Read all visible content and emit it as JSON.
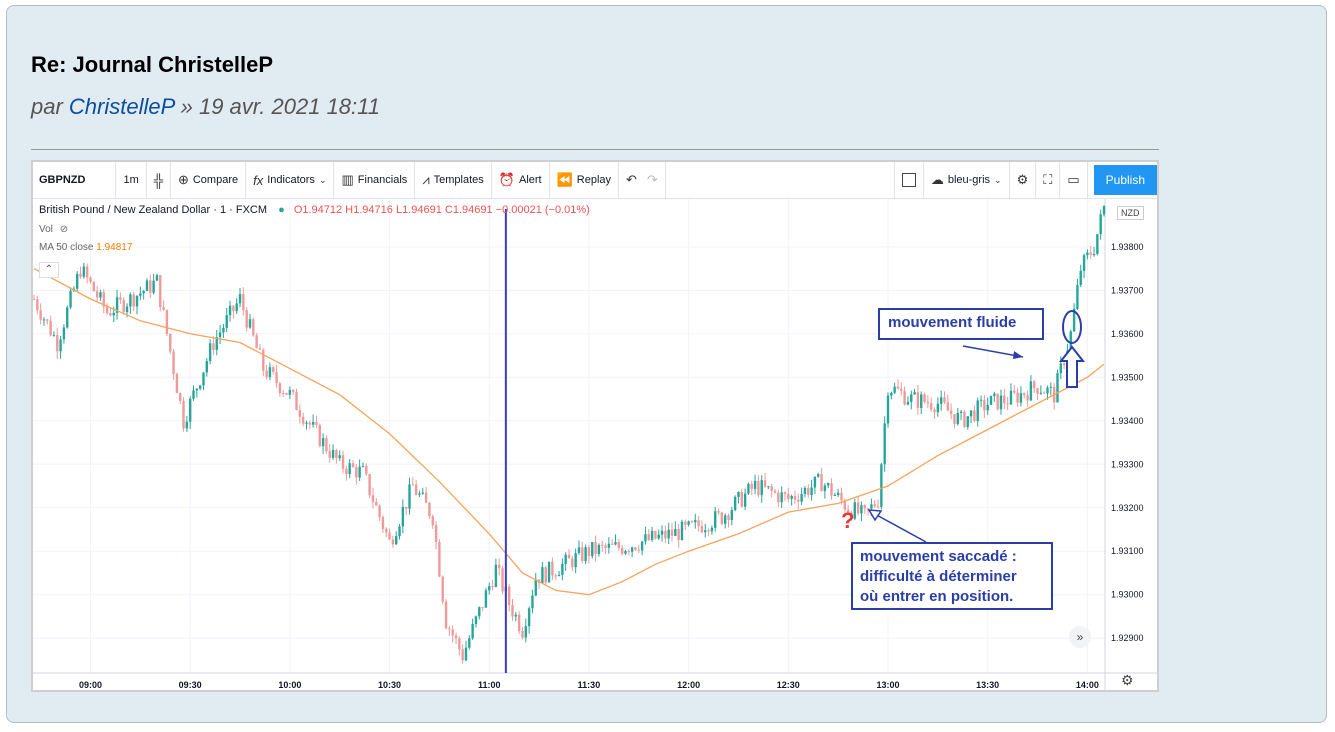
{
  "post": {
    "title": "Re: Journal ChristelleP",
    "by_prefix": "par",
    "author": "ChristelleP",
    "date": "» 19 avr. 2021 18:11"
  },
  "toolbar": {
    "symbol": "GBPNZD",
    "interval": "1m",
    "compare": "Compare",
    "indicators": "Indicators",
    "financials": "Financials",
    "templates": "Templates",
    "alert": "Alert",
    "replay": "Replay",
    "layout_name": "bleu-gris",
    "publish": "Publish"
  },
  "legend": {
    "instrument": "British Pound / New Zealand Dollar · 1 · FXCM",
    "ohlc": "O1.94712 H1.94716 L1.94691 C1.94691 −0.00021 (−0.01%)",
    "vol": "Vol",
    "ma": "MA 50 close",
    "ma_value": "1.94817"
  },
  "colors": {
    "up": "#26a69a",
    "down": "#ef9a9a",
    "ma": "#f7a35c",
    "vline": "#3a3acb",
    "annotation": "#2b3ea8"
  },
  "chart_data": {
    "type": "candlestick",
    "currency": "NZD",
    "y_ticks": [
      "1.92900",
      "1.93000",
      "1.93100",
      "1.93200",
      "1.93300",
      "1.93400",
      "1.93500",
      "1.93600",
      "1.93700",
      "1.93800"
    ],
    "x_ticks": [
      "09:00",
      "09:30",
      "10:00",
      "10:30",
      "11:00",
      "11:30",
      "12:00",
      "12:30",
      "13:00",
      "13:30",
      "14:00"
    ],
    "ylim": [
      1.9282,
      1.9391
    ],
    "close_path": [
      [
        "08:43",
        1.9368
      ],
      [
        "08:50",
        1.9358
      ],
      [
        "08:57",
        1.9375
      ],
      [
        "09:05",
        1.9365
      ],
      [
        "09:12",
        1.9368
      ],
      [
        "09:20",
        1.9372
      ],
      [
        "09:28",
        1.934
      ],
      [
        "09:37",
        1.9358
      ],
      [
        "09:45",
        1.9368
      ],
      [
        "09:52",
        1.9352
      ],
      [
        "10:00",
        1.9346
      ],
      [
        "10:07",
        1.9338
      ],
      [
        "10:15",
        1.933
      ],
      [
        "10:22",
        1.9328
      ],
      [
        "10:30",
        1.9312
      ],
      [
        "10:37",
        1.9325
      ],
      [
        "10:43",
        1.9318
      ],
      [
        "10:47",
        1.9294
      ],
      [
        "10:52",
        1.9286
      ],
      [
        "10:57",
        1.9296
      ],
      [
        "11:02",
        1.9306
      ],
      [
        "11:06",
        1.9298
      ],
      [
        "11:10",
        1.9292
      ],
      [
        "11:14",
        1.9304
      ],
      [
        "11:20",
        1.9306
      ],
      [
        "11:30",
        1.931
      ],
      [
        "11:40",
        1.9311
      ],
      [
        "11:50",
        1.9313
      ],
      [
        "12:00",
        1.9315
      ],
      [
        "12:10",
        1.9318
      ],
      [
        "12:20",
        1.9325
      ],
      [
        "12:30",
        1.9322
      ],
      [
        "12:40",
        1.9326
      ],
      [
        "12:48",
        1.932
      ],
      [
        "12:53",
        1.9318
      ],
      [
        "12:57",
        1.9322
      ],
      [
        "13:00",
        1.9348
      ],
      [
        "13:07",
        1.9345
      ],
      [
        "13:15",
        1.9344
      ],
      [
        "13:22",
        1.934
      ],
      [
        "13:30",
        1.9344
      ],
      [
        "13:37",
        1.9345
      ],
      [
        "13:45",
        1.9348
      ],
      [
        "13:50",
        1.9346
      ],
      [
        "13:55",
        1.936
      ],
      [
        "13:58",
        1.9375
      ],
      [
        "14:02",
        1.938
      ],
      [
        "14:05",
        1.9389
      ]
    ],
    "ma_path": [
      [
        "08:43",
        1.9375
      ],
      [
        "09:00",
        1.9368
      ],
      [
        "09:15",
        1.9363
      ],
      [
        "09:30",
        1.936
      ],
      [
        "09:45",
        1.9358
      ],
      [
        "10:00",
        1.9352
      ],
      [
        "10:15",
        1.9346
      ],
      [
        "10:30",
        1.9337
      ],
      [
        "10:45",
        1.9326
      ],
      [
        "11:00",
        1.9314
      ],
      [
        "11:10",
        1.9305
      ],
      [
        "11:20",
        1.9301
      ],
      [
        "11:30",
        1.93
      ],
      [
        "11:40",
        1.9303
      ],
      [
        "11:50",
        1.9307
      ],
      [
        "12:00",
        1.931
      ],
      [
        "12:15",
        1.9314
      ],
      [
        "12:30",
        1.9319
      ],
      [
        "12:45",
        1.9321
      ],
      [
        "13:00",
        1.9325
      ],
      [
        "13:15",
        1.9332
      ],
      [
        "13:30",
        1.9338
      ],
      [
        "13:45",
        1.9344
      ],
      [
        "14:00",
        1.935
      ],
      [
        "14:05",
        1.9353
      ]
    ],
    "vertical_line_time": "11:05"
  },
  "annotations": {
    "fluide": "mouvement fluide",
    "saccade_1": "mouvement saccadé :",
    "saccade_2": "difficulté à déterminer",
    "saccade_3": "où entrer en position.",
    "question": "?"
  }
}
